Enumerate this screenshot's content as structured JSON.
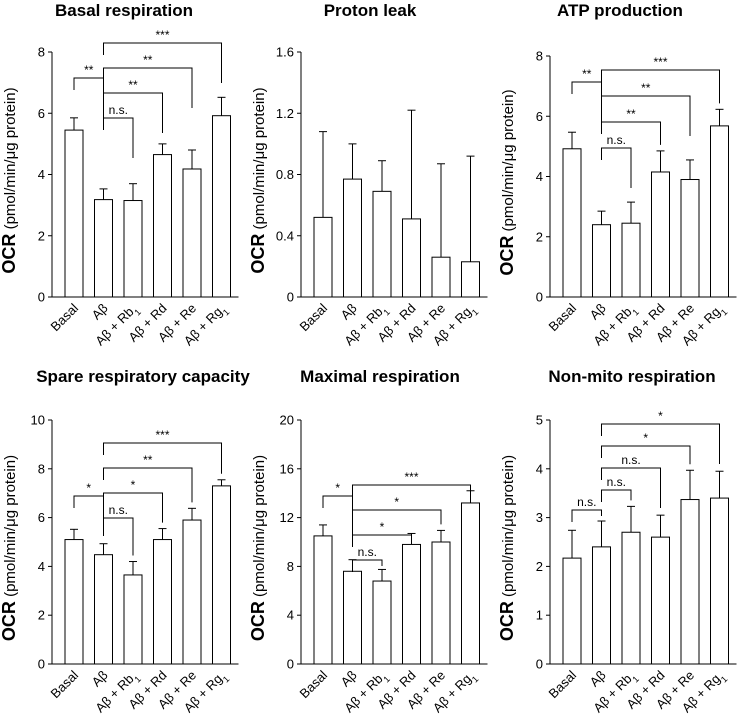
{
  "chart_data": [
    {
      "type": "bar",
      "title": "Basal respiration",
      "ylabel_bold": "OCR",
      "ylabel_rest": " (pmol/min/μg protein)",
      "categories": [
        "Basal",
        "Aβ",
        "Aβ + Rb1",
        "Aβ + Rd",
        "Aβ + Re",
        "Aβ + Rg1"
      ],
      "values": [
        5.45,
        3.18,
        3.15,
        4.65,
        4.18,
        5.92
      ],
      "errors": [
        0.4,
        0.35,
        0.55,
        0.35,
        0.62,
        0.6
      ],
      "ylim": [
        0,
        8
      ],
      "yticks": [
        "0",
        "2",
        "4",
        "6",
        "8"
      ],
      "brackets": [
        {
          "from": 0,
          "to": 1,
          "label": "**"
        },
        {
          "from": 1,
          "to": 2,
          "label": "n.s."
        },
        {
          "from": 1,
          "to": 3,
          "label": "**"
        },
        {
          "from": 1,
          "to": 4,
          "label": "**"
        },
        {
          "from": 1,
          "to": 5,
          "label": "***"
        }
      ]
    },
    {
      "type": "bar",
      "title": "Proton leak",
      "ylabel_bold": "OCR",
      "ylabel_rest": " (pmol/min/μg protein)",
      "categories": [
        "Basal",
        "Aβ",
        "Aβ + Rb1",
        "Aβ + Rd",
        "Aβ + Re",
        "Aβ + Rg1"
      ],
      "values": [
        0.52,
        0.77,
        0.69,
        0.51,
        0.26,
        0.23
      ],
      "errors": [
        0.56,
        0.23,
        0.2,
        0.71,
        0.61,
        0.69
      ],
      "ylim": [
        0,
        1.6
      ],
      "yticks": [
        "0",
        "0.4",
        "0.8",
        "1.2",
        "1.6"
      ],
      "brackets": []
    },
    {
      "type": "bar",
      "title": "ATP production",
      "ylabel_bold": "OCR",
      "ylabel_rest": " (pmol/min/μg protein)",
      "categories": [
        "Basal",
        "Aβ",
        "Aβ + Rb1",
        "Aβ + Rd",
        "Aβ + Re",
        "Aβ + Rg1"
      ],
      "values": [
        4.92,
        2.4,
        2.45,
        4.15,
        3.9,
        5.68
      ],
      "errors": [
        0.55,
        0.45,
        0.7,
        0.7,
        0.65,
        0.55
      ],
      "ylim": [
        0,
        8
      ],
      "yticks": [
        "0",
        "2",
        "4",
        "6",
        "8"
      ],
      "brackets": [
        {
          "from": 0,
          "to": 1,
          "label": "**"
        },
        {
          "from": 1,
          "to": 2,
          "label": "n.s."
        },
        {
          "from": 1,
          "to": 3,
          "label": "**"
        },
        {
          "from": 1,
          "to": 4,
          "label": "**"
        },
        {
          "from": 1,
          "to": 5,
          "label": "***"
        }
      ]
    },
    {
      "type": "bar",
      "title": "Spare respiratory capacity",
      "ylabel_bold": "OCR",
      "ylabel_rest": " (pmol/min/μg protein)",
      "categories": [
        "Basal",
        "Aβ",
        "Aβ + Rb1",
        "Aβ + Rd",
        "Aβ + Re",
        "Aβ + Rg1"
      ],
      "values": [
        5.1,
        4.48,
        3.65,
        5.1,
        5.9,
        7.3
      ],
      "errors": [
        0.42,
        0.45,
        0.55,
        0.45,
        0.48,
        0.25
      ],
      "ylim": [
        0,
        10
      ],
      "yticks": [
        "0",
        "2",
        "4",
        "6",
        "8",
        "10"
      ],
      "brackets": [
        {
          "from": 0,
          "to": 1,
          "label": "*"
        },
        {
          "from": 1,
          "to": 2,
          "label": "n.s."
        },
        {
          "from": 1,
          "to": 3,
          "label": "*"
        },
        {
          "from": 1,
          "to": 4,
          "label": "**"
        },
        {
          "from": 1,
          "to": 5,
          "label": "***"
        }
      ]
    },
    {
      "type": "bar",
      "title": "Maximal respiration",
      "ylabel_bold": "OCR",
      "ylabel_rest": " (pmol/min/μg protein)",
      "categories": [
        "Basal",
        "Aβ",
        "Aβ + Rb1",
        "Aβ + Rd",
        "Aβ + Re",
        "Aβ + Rg1"
      ],
      "values": [
        10.5,
        7.6,
        6.8,
        9.8,
        10.0,
        13.2
      ],
      "errors": [
        0.9,
        0.95,
        0.95,
        0.9,
        0.95,
        1.0
      ],
      "ylim": [
        0,
        20
      ],
      "yticks": [
        "0",
        "4",
        "8",
        "12",
        "16",
        "20"
      ],
      "brackets": [
        {
          "from": 0,
          "to": 1,
          "label": "*"
        },
        {
          "from": 1,
          "to": 2,
          "label": "n.s."
        },
        {
          "from": 1,
          "to": 3,
          "label": "*"
        },
        {
          "from": 1,
          "to": 4,
          "label": "*"
        },
        {
          "from": 1,
          "to": 5,
          "label": "***"
        }
      ]
    },
    {
      "type": "bar",
      "title": "Non-mito respiration",
      "ylabel_bold": "OCR",
      "ylabel_rest": " (pmol/min/μg protein)",
      "categories": [
        "Basal",
        "Aβ",
        "Aβ + Rb1",
        "Aβ + Rd",
        "Aβ + Re",
        "Aβ + Rg1"
      ],
      "values": [
        2.17,
        2.4,
        2.7,
        2.6,
        3.37,
        3.4
      ],
      "errors": [
        0.57,
        0.53,
        0.53,
        0.45,
        0.6,
        0.55
      ],
      "ylim": [
        0,
        5
      ],
      "yticks": [
        "0",
        "1",
        "2",
        "3",
        "4",
        "5"
      ],
      "brackets": [
        {
          "from": 0,
          "to": 1,
          "label": "n.s."
        },
        {
          "from": 1,
          "to": 2,
          "label": "n.s."
        },
        {
          "from": 1,
          "to": 3,
          "label": "n.s."
        },
        {
          "from": 1,
          "to": 4,
          "label": "*"
        },
        {
          "from": 1,
          "to": 5,
          "label": "*"
        }
      ]
    }
  ]
}
